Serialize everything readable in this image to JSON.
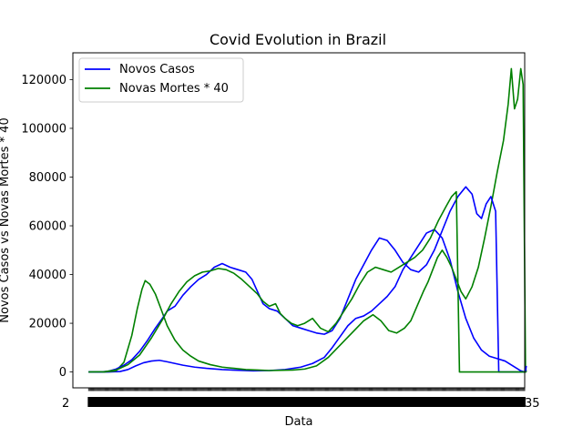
{
  "chart_data": {
    "type": "line",
    "title": "Covid Evolution in Brazil",
    "xlabel": "Data",
    "ylabel": "Novos Casos vs Novas Mortes * 40",
    "xlim": [
      -20,
      555
    ],
    "ylim": [
      -6500,
      131000
    ],
    "yticks": [
      0,
      20000,
      40000,
      60000,
      80000,
      100000,
      120000
    ],
    "ytick_labels": [
      "0",
      "20000",
      "40000",
      "60000",
      "80000",
      100000,
      120000
    ],
    "grid": false,
    "legend_position": "top-left",
    "x_tick_count": 450,
    "x_tick_label_fragments": {
      "left": "2",
      "right": "35"
    },
    "series": [
      {
        "name": "Novos Casos",
        "color": "#0000ff",
        "points": [
          [
            0,
            0
          ],
          [
            25,
            0
          ],
          [
            40,
            200
          ],
          [
            50,
            1000
          ],
          [
            60,
            2500
          ],
          [
            70,
            3800
          ],
          [
            80,
            4500
          ],
          [
            90,
            4800
          ],
          [
            100,
            4200
          ],
          [
            110,
            3500
          ],
          [
            120,
            2800
          ],
          [
            135,
            2000
          ],
          [
            150,
            1500
          ],
          [
            170,
            1000
          ],
          [
            190,
            700
          ],
          [
            210,
            500
          ],
          [
            230,
            600
          ],
          [
            250,
            1000
          ],
          [
            270,
            2000
          ],
          [
            285,
            3500
          ],
          [
            300,
            6000
          ],
          [
            310,
            10000
          ],
          [
            320,
            14500
          ],
          [
            330,
            19000
          ],
          [
            340,
            22000
          ],
          [
            350,
            23000
          ],
          [
            360,
            25000
          ],
          [
            370,
            28000
          ],
          [
            380,
            31000
          ],
          [
            390,
            35000
          ],
          [
            400,
            42000
          ],
          [
            410,
            47000
          ],
          [
            420,
            52000
          ],
          [
            430,
            57000
          ],
          [
            440,
            58500
          ],
          [
            450,
            55000
          ],
          [
            460,
            46000
          ],
          [
            470,
            33000
          ],
          [
            480,
            22000
          ],
          [
            490,
            14000
          ],
          [
            500,
            9000
          ],
          [
            510,
            6500
          ],
          [
            520,
            5500
          ],
          [
            530,
            4500
          ],
          [
            540,
            2500
          ],
          [
            550,
            500
          ],
          [
            555,
            0
          ],
          [
            555,
            0
          ]
        ]
      },
      {
        "name": "Novas Mortes * 40",
        "color": "#008000",
        "points": [
          [
            0,
            0
          ],
          [
            20,
            0
          ],
          [
            35,
            500
          ],
          [
            45,
            4000
          ],
          [
            55,
            15000
          ],
          [
            62,
            26000
          ],
          [
            68,
            34000
          ],
          [
            72,
            37500
          ],
          [
            78,
            36000
          ],
          [
            85,
            32000
          ],
          [
            92,
            26000
          ],
          [
            100,
            19000
          ],
          [
            110,
            13000
          ],
          [
            120,
            9000
          ],
          [
            130,
            6500
          ],
          [
            140,
            4500
          ],
          [
            155,
            3000
          ],
          [
            170,
            2000
          ],
          [
            185,
            1500
          ],
          [
            200,
            1000
          ],
          [
            215,
            800
          ],
          [
            230,
            600
          ],
          [
            245,
            700
          ],
          [
            260,
            800
          ],
          [
            275,
            1200
          ],
          [
            290,
            2500
          ],
          [
            305,
            6000
          ],
          [
            320,
            11000
          ],
          [
            335,
            16000
          ],
          [
            350,
            21000
          ],
          [
            362,
            23500
          ],
          [
            372,
            21000
          ],
          [
            382,
            17000
          ],
          [
            392,
            16000
          ],
          [
            402,
            18000
          ],
          [
            410,
            21000
          ],
          [
            418,
            27000
          ],
          [
            426,
            33000
          ],
          [
            432,
            37000
          ],
          [
            438,
            42000
          ],
          [
            444,
            47000
          ],
          [
            450,
            50000
          ],
          [
            456,
            47000
          ],
          [
            462,
            43000
          ],
          [
            468,
            38000
          ],
          [
            474,
            33000
          ],
          [
            480,
            30000
          ],
          [
            488,
            35000
          ],
          [
            496,
            43000
          ],
          [
            504,
            55000
          ],
          [
            512,
            68000
          ],
          [
            520,
            82000
          ],
          [
            528,
            95000
          ],
          [
            534,
            110000
          ],
          [
            538,
            124500
          ],
          [
            542,
            108000
          ],
          [
            546,
            112000
          ],
          [
            550,
            124500
          ],
          [
            553,
            118000
          ],
          [
            556,
            2000
          ],
          [
            557,
            0
          ]
        ]
      },
      {
        "name": "",
        "color": "#0000ff",
        "points": [
          [
            0,
            0
          ],
          [
            15,
            0
          ],
          [
            25,
            300
          ],
          [
            35,
            1200
          ],
          [
            45,
            2800
          ],
          [
            55,
            5000
          ],
          [
            65,
            8500
          ],
          [
            75,
            13000
          ],
          [
            85,
            18000
          ],
          [
            95,
            22500
          ],
          [
            100,
            25000
          ],
          [
            110,
            27000
          ],
          [
            120,
            31500
          ],
          [
            130,
            35000
          ],
          [
            140,
            38000
          ],
          [
            150,
            40000
          ],
          [
            160,
            43000
          ],
          [
            170,
            44500
          ],
          [
            180,
            43000
          ],
          [
            190,
            42000
          ],
          [
            200,
            41000
          ],
          [
            208,
            38000
          ],
          [
            215,
            33000
          ],
          [
            222,
            28000
          ],
          [
            230,
            26000
          ],
          [
            240,
            25000
          ],
          [
            250,
            22000
          ],
          [
            260,
            19000
          ],
          [
            270,
            18000
          ],
          [
            280,
            17000
          ],
          [
            290,
            16000
          ],
          [
            300,
            15500
          ],
          [
            310,
            17000
          ],
          [
            320,
            22000
          ],
          [
            330,
            30000
          ],
          [
            340,
            38000
          ],
          [
            350,
            44000
          ],
          [
            360,
            50000
          ],
          [
            370,
            55000
          ],
          [
            380,
            54000
          ],
          [
            390,
            50000
          ],
          [
            400,
            45000
          ],
          [
            410,
            42000
          ],
          [
            420,
            41000
          ],
          [
            430,
            44000
          ],
          [
            440,
            50000
          ],
          [
            450,
            58000
          ],
          [
            460,
            66000
          ],
          [
            470,
            72000
          ],
          [
            480,
            76000
          ],
          [
            488,
            73000
          ],
          [
            494,
            65000
          ],
          [
            500,
            63000
          ],
          [
            506,
            69000
          ],
          [
            512,
            72000
          ],
          [
            518,
            66000
          ],
          [
            522,
            0
          ],
          [
            556,
            0
          ],
          [
            557,
            2500
          ]
        ]
      },
      {
        "name": "",
        "color": "#008000",
        "points": [
          [
            0,
            0
          ],
          [
            20,
            100
          ],
          [
            35,
            800
          ],
          [
            50,
            3000
          ],
          [
            65,
            7000
          ],
          [
            80,
            14000
          ],
          [
            95,
            22000
          ],
          [
            105,
            28000
          ],
          [
            115,
            33000
          ],
          [
            125,
            37000
          ],
          [
            135,
            39500
          ],
          [
            145,
            41000
          ],
          [
            155,
            41500
          ],
          [
            165,
            42500
          ],
          [
            175,
            42000
          ],
          [
            185,
            40500
          ],
          [
            195,
            38000
          ],
          [
            205,
            35000
          ],
          [
            215,
            32000
          ],
          [
            222,
            29000
          ],
          [
            230,
            27000
          ],
          [
            238,
            28000
          ],
          [
            244,
            24000
          ],
          [
            250,
            22000
          ],
          [
            258,
            20000
          ],
          [
            266,
            19000
          ],
          [
            275,
            20000
          ],
          [
            285,
            22000
          ],
          [
            295,
            18000
          ],
          [
            305,
            16500
          ],
          [
            315,
            20000
          ],
          [
            325,
            25000
          ],
          [
            335,
            30000
          ],
          [
            345,
            36000
          ],
          [
            355,
            41000
          ],
          [
            365,
            43000
          ],
          [
            375,
            42000
          ],
          [
            385,
            41000
          ],
          [
            395,
            43000
          ],
          [
            405,
            45000
          ],
          [
            415,
            47000
          ],
          [
            425,
            50000
          ],
          [
            435,
            55000
          ],
          [
            445,
            62000
          ],
          [
            455,
            68000
          ],
          [
            462,
            72000
          ],
          [
            468,
            74000
          ],
          [
            472,
            0
          ],
          [
            557,
            0
          ]
        ]
      }
    ]
  }
}
